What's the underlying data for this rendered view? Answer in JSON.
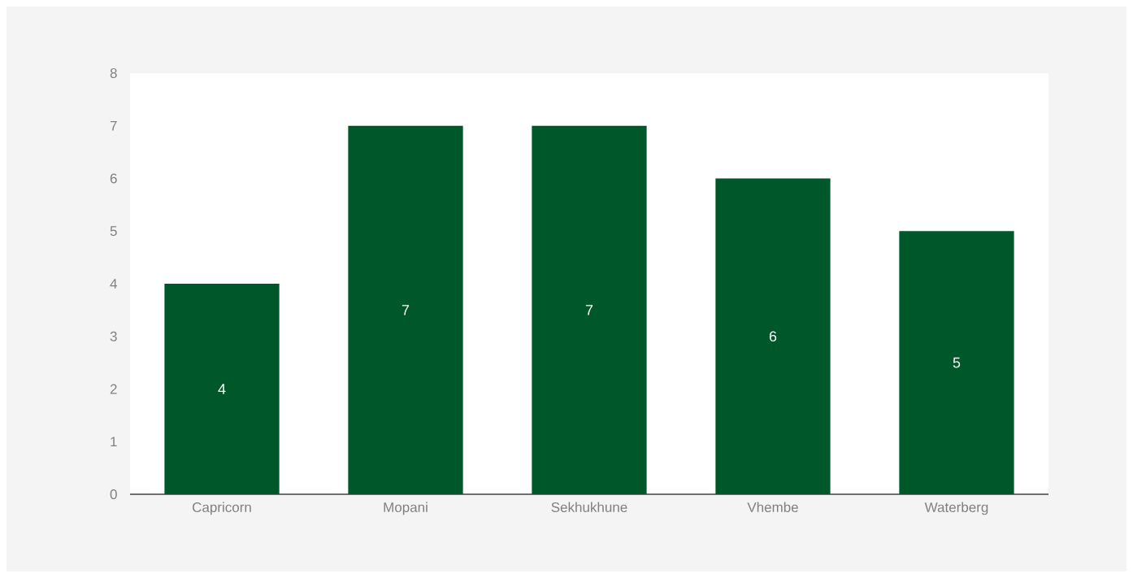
{
  "chart_data": {
    "type": "bar",
    "categories": [
      "Capricorn",
      "Mopani",
      "Sekhukhune",
      "Vhembe",
      "Waterberg"
    ],
    "values": [
      4,
      7,
      7,
      6,
      5
    ],
    "color": "#00582a",
    "ylim": [
      0,
      8
    ],
    "yticks": [
      0,
      1,
      2,
      3,
      4,
      5,
      6,
      7,
      8
    ],
    "data_labels": true
  }
}
